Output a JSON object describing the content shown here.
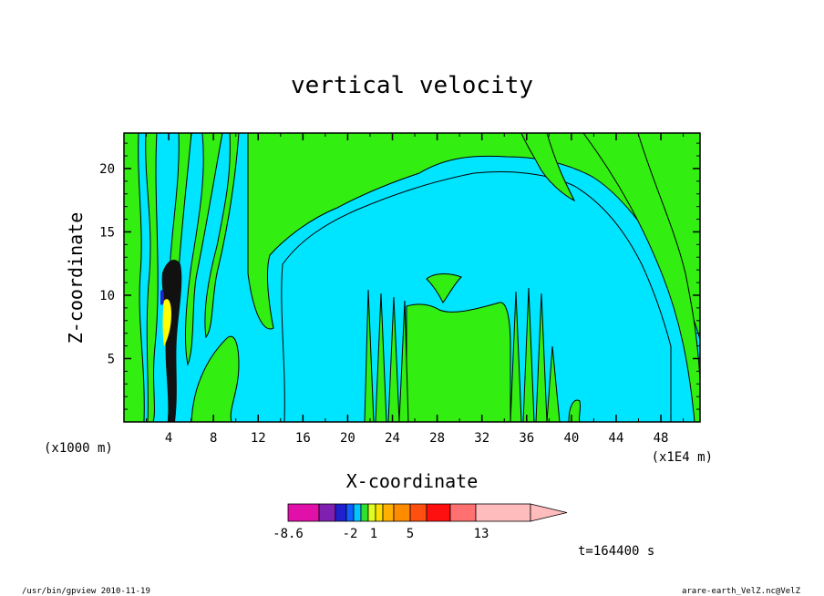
{
  "chart_data": {
    "type": "contour",
    "title": "vertical velocity",
    "xlabel": "X-coordinate",
    "ylabel": "Z-coordinate",
    "x_unit_left": "(x1000 m)",
    "x_unit_right": "(x1E4 m)",
    "x_ticks": [
      4,
      8,
      12,
      16,
      20,
      24,
      28,
      32,
      36,
      40,
      44,
      48
    ],
    "y_ticks": [
      5,
      10,
      15,
      20
    ],
    "xlim": [
      0,
      51.5
    ],
    "ylim": [
      0,
      22.8
    ],
    "time_label": "t=164400 s",
    "colorbar": {
      "tick_labels": [
        {
          "text": "-8.6",
          "index": 1
        },
        {
          "text": "-2",
          "index": 3
        },
        {
          "text": "1",
          "index": 5
        },
        {
          "text": "5",
          "index": 7
        },
        {
          "text": "13",
          "index": 9
        }
      ],
      "colors": [
        "#e010a8",
        "#8020b0",
        "#2020d0",
        "#1060ff",
        "#00c8ff",
        "#30e030",
        "#e0ff20",
        "#ffe000",
        "#ffb000",
        "#ff8c00",
        "#ff5010",
        "#ff1010",
        "#ff7070",
        "#ffbcbc",
        "#ffbcbc"
      ]
    },
    "colors": {
      "background_fill": "#00e5ff",
      "positive_fill": "#33ee11",
      "strong_fill": "#000000",
      "accent_fill": "#ffff00"
    }
  },
  "footer": {
    "left": "/usr/bin/gpview  2010-11-19",
    "right": "arare-earth_VelZ.nc@VelZ"
  }
}
